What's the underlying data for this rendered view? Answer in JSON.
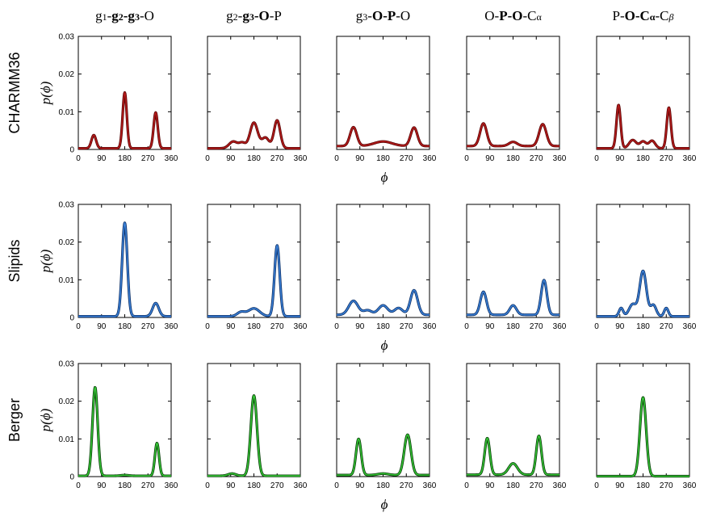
{
  "figure": {
    "column_titles": [
      [
        {
          "t": "g",
          "b": false
        },
        {
          "t": "1",
          "b": false,
          "sub": true
        },
        {
          "t": "-",
          "b": false
        },
        {
          "t": "g",
          "b": true
        },
        {
          "t": "2",
          "b": true,
          "sub": true
        },
        {
          "t": "-g",
          "b": true
        },
        {
          "t": "3",
          "b": true,
          "sub": true
        },
        {
          "t": "-O",
          "b": false
        }
      ],
      [
        {
          "t": "g",
          "b": false
        },
        {
          "t": "2",
          "b": false,
          "sub": true
        },
        {
          "t": "-",
          "b": false
        },
        {
          "t": "g",
          "b": true
        },
        {
          "t": "3",
          "b": true,
          "sub": true
        },
        {
          "t": "-O",
          "b": true
        },
        {
          "t": "-P",
          "b": false
        }
      ],
      [
        {
          "t": "g",
          "b": false
        },
        {
          "t": "3",
          "b": false,
          "sub": true
        },
        {
          "t": "-",
          "b": false
        },
        {
          "t": "O-P",
          "b": true
        },
        {
          "t": "-O",
          "b": false
        }
      ],
      [
        {
          "t": "O-",
          "b": false
        },
        {
          "t": "P-O",
          "b": true
        },
        {
          "t": "-C",
          "b": false
        },
        {
          "t": "α",
          "b": false,
          "sub": true
        }
      ],
      [
        {
          "t": "P-",
          "b": false
        },
        {
          "t": "O-C",
          "b": true
        },
        {
          "t": "α",
          "b": true,
          "sub": true
        },
        {
          "t": "-C",
          "b": false
        },
        {
          "t": "β",
          "b": false,
          "sub": true,
          "i": true
        }
      ]
    ],
    "row_titles": [
      "CHARMM36",
      "Slipids",
      "Berger"
    ],
    "ylabel": "p(ϕ)",
    "xlabel": "ϕ"
  },
  "chart_data": {
    "type": "line",
    "xlim": [
      0,
      360
    ],
    "ylim": [
      0,
      0.03
    ],
    "x_ticks": [
      0,
      90,
      180,
      270,
      360
    ],
    "y_ticks": [
      0,
      0.01,
      0.02,
      0.03
    ],
    "y_tick_labels": [
      "0",
      "0.01",
      "0.02",
      "0.03"
    ],
    "rows": [
      {
        "name": "CHARMM36",
        "color": "#b21a1a",
        "dark_color": "#5a0606",
        "panels": [
          {
            "title": "g1-g2-g3-O",
            "baseline": 0.0003,
            "peaks": [
              [
                60,
                0.0035,
                9
              ],
              [
                180,
                0.0148,
                8
              ],
              [
                300,
                0.0095,
                8
              ]
            ]
          },
          {
            "title": "g2-g3-O-P",
            "baseline": 0.0003,
            "peaks": [
              [
                100,
                0.0018,
                16
              ],
              [
                135,
                0.0014,
                12
              ],
              [
                180,
                0.0068,
                15
              ],
              [
                270,
                0.0074,
                12
              ],
              [
                225,
                0.0028,
                14
              ]
            ]
          },
          {
            "title": "g3-O-P-O",
            "baseline": 0.0009,
            "peaks": [
              [
                65,
                0.005,
                13
              ],
              [
                180,
                0.0012,
                35
              ],
              [
                300,
                0.0049,
                13
              ]
            ]
          },
          {
            "title": "O-P-O-Cα",
            "baseline": 0.0009,
            "peaks": [
              [
                65,
                0.006,
                13
              ],
              [
                180,
                0.0011,
                16
              ],
              [
                295,
                0.0058,
                14
              ]
            ]
          },
          {
            "title": "P-O-Cα-Cβ",
            "baseline": 0.0003,
            "peaks": [
              [
                85,
                0.0115,
                8
              ],
              [
                140,
                0.0022,
                14
              ],
              [
                180,
                0.0018,
                12
              ],
              [
                215,
                0.002,
                12
              ],
              [
                280,
                0.0108,
                8
              ]
            ]
          }
        ]
      },
      {
        "name": "Slipids",
        "color": "#3a7fd5",
        "dark_color": "#0c2f66",
        "panels": [
          {
            "title": "g1-g2-g3-O",
            "baseline": 0.0003,
            "peaks": [
              [
                180,
                0.0248,
                10
              ],
              [
                300,
                0.0035,
                12
              ]
            ]
          },
          {
            "title": "g2-g3-O-P",
            "baseline": 0.0003,
            "peaks": [
              [
                130,
                0.0011,
                15
              ],
              [
                180,
                0.0021,
                22
              ],
              [
                270,
                0.0188,
                10
              ]
            ]
          },
          {
            "title": "g3-O-P-O",
            "baseline": 0.0007,
            "peaks": [
              [
                65,
                0.0037,
                18
              ],
              [
                120,
                0.0012,
                16
              ],
              [
                180,
                0.0025,
                18
              ],
              [
                240,
                0.0018,
                16
              ],
              [
                300,
                0.0065,
                14
              ]
            ]
          },
          {
            "title": "O-P-O-Cα",
            "baseline": 0.0007,
            "peaks": [
              [
                65,
                0.0061,
                12
              ],
              [
                180,
                0.0025,
                13
              ],
              [
                300,
                0.0092,
                11
              ]
            ]
          },
          {
            "title": "P-O-Cα-Cβ",
            "baseline": 0.0003,
            "peaks": [
              [
                95,
                0.0022,
                8
              ],
              [
                140,
                0.0032,
                14
              ],
              [
                180,
                0.012,
                13
              ],
              [
                220,
                0.003,
                11
              ],
              [
                270,
                0.0022,
                8
              ]
            ]
          }
        ]
      },
      {
        "name": "Berger",
        "color": "#35c335",
        "dark_color": "#063d06",
        "panels": [
          {
            "title": "g1-g2-g3-O",
            "baseline": 0.0002,
            "peaks": [
              [
                65,
                0.0235,
                10
              ],
              [
                180,
                0.0002,
                15
              ],
              [
                305,
                0.0087,
                8
              ]
            ]
          },
          {
            "title": "g2-g3-O-P",
            "baseline": 0.0002,
            "peaks": [
              [
                95,
                0.0006,
                15
              ],
              [
                180,
                0.0213,
                12
              ]
            ]
          },
          {
            "title": "g3-O-P-O",
            "baseline": 0.0004,
            "peaks": [
              [
                85,
                0.0096,
                10
              ],
              [
                180,
                0.0004,
                20
              ],
              [
                275,
                0.0107,
                13
              ]
            ]
          },
          {
            "title": "O-P-O-Cα",
            "baseline": 0.0005,
            "peaks": [
              [
                80,
                0.0097,
                10
              ],
              [
                180,
                0.003,
                17
              ],
              [
                280,
                0.0103,
                10
              ]
            ]
          },
          {
            "title": "P-O-Cα-Cβ",
            "baseline": 0.0001,
            "peaks": [
              [
                180,
                0.0209,
                12
              ]
            ]
          }
        ]
      }
    ]
  }
}
